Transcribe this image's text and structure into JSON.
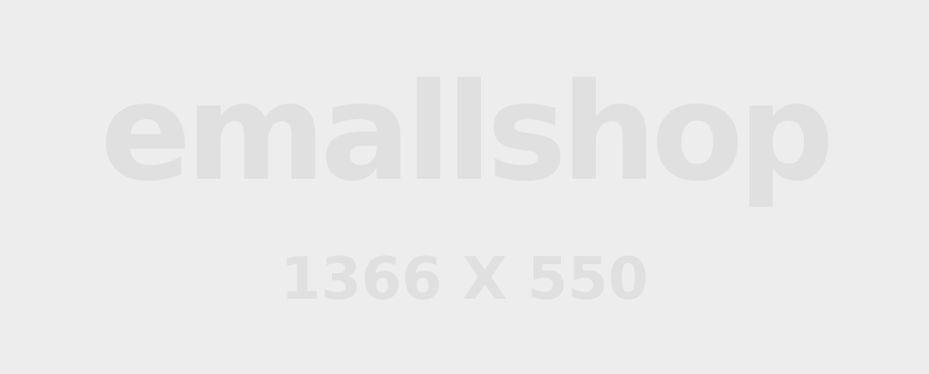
{
  "placeholder": {
    "brand_text": "emallshop",
    "dimensions_text": "1366 X 550"
  },
  "colors": {
    "background": "#ededed",
    "text": "#e0e0e0"
  }
}
